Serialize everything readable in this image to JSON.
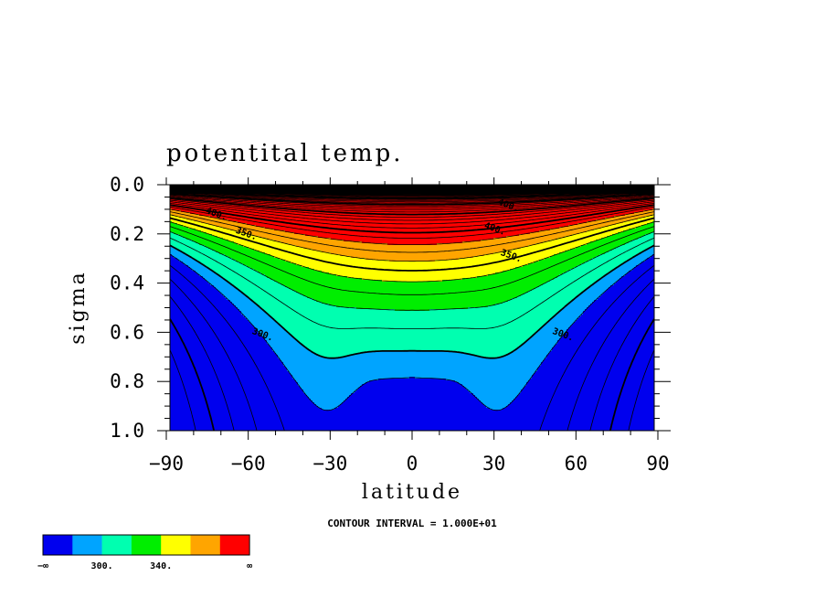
{
  "chart_data": {
    "type": "contour",
    "title": "potentital temp.",
    "xlabel": "latitude",
    "ylabel": "sigma",
    "xlim": [
      -90,
      90
    ],
    "ylim": [
      1.0,
      0.0
    ],
    "y_axis_inverted": true,
    "x_ticks": [
      "−90",
      "−60",
      "−30",
      "0",
      "30",
      "60",
      "90"
    ],
    "x_tick_values": [
      -90,
      -60,
      -30,
      0,
      30,
      60,
      90
    ],
    "y_ticks": [
      "0.0",
      "0.2",
      "0.4",
      "0.6",
      "0.8",
      "1.0"
    ],
    "y_tick_values": [
      0.0,
      0.2,
      0.4,
      0.6,
      0.8,
      1.0
    ],
    "contour_interval_text": "CONTOUR INTERVAL = 1.000E+01",
    "contour_interval": 10,
    "contour_labels": [
      {
        "text": "300.",
        "lat": -55,
        "sigma": 0.62
      },
      {
        "text": "300.",
        "lat": 55,
        "sigma": 0.62
      },
      {
        "text": "350.",
        "lat": -61,
        "sigma": 0.21
      },
      {
        "text": "350.",
        "lat": 36,
        "sigma": 0.3
      },
      {
        "text": "400.",
        "lat": 35,
        "sigma": 0.095
      },
      {
        "text": "400.",
        "lat": -72,
        "sigma": 0.13
      },
      {
        "text": "400.",
        "lat": 30,
        "sigma": 0.19
      }
    ],
    "fill_levels": [
      {
        "lower": null,
        "upper": 290,
        "color": "#0000ee"
      },
      {
        "lower": 290,
        "upper": 300,
        "color": "#00a4ff"
      },
      {
        "lower": 300,
        "upper": 320,
        "color": "#00ffb0"
      },
      {
        "lower": 320,
        "upper": 340,
        "color": "#00ee00"
      },
      {
        "lower": 340,
        "upper": 360,
        "color": "#ffff00"
      },
      {
        "lower": 360,
        "upper": 380,
        "color": "#ffa500"
      },
      {
        "lower": 380,
        "upper": null,
        "color": "#ff0000"
      }
    ],
    "colorbar": {
      "labels": [
        "−∞",
        "300.",
        "340.",
        "∞"
      ],
      "colors": [
        "#0000ee",
        "#00a4ff",
        "#00ffb0",
        "#00ee00",
        "#ffff00",
        "#ffa500",
        "#ff0000"
      ]
    },
    "top_band_color": "#000000"
  }
}
